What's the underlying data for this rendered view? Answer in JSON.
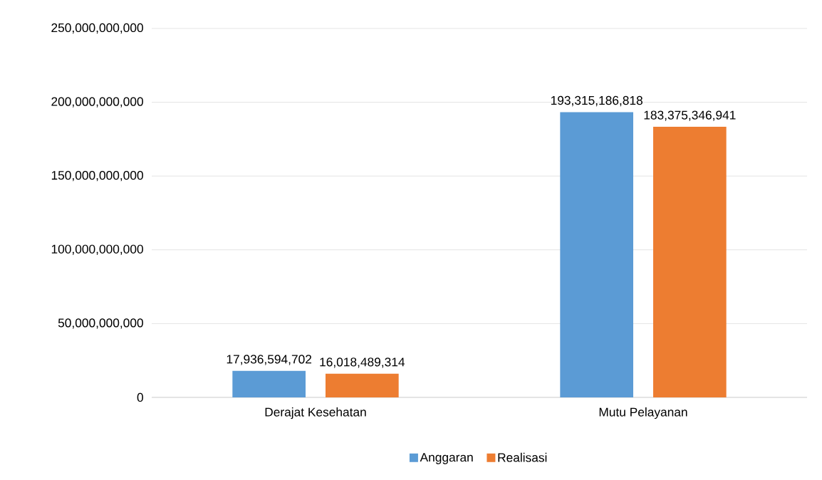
{
  "chart_data": {
    "type": "bar",
    "categories": [
      "Derajat Kesehatan",
      "Mutu Pelayanan"
    ],
    "series": [
      {
        "name": "Anggaran",
        "color": "#5b9bd5",
        "values": [
          17936594702,
          193315186818
        ],
        "value_labels": [
          "17,936,594,702",
          "193,315,186,818"
        ]
      },
      {
        "name": "Realisasi",
        "color": "#ed7d31",
        "values": [
          16018489314,
          183375346941
        ],
        "value_labels": [
          "16,018,489,314",
          "183,375,346,941"
        ]
      }
    ],
    "ylim": [
      0,
      250000000000
    ],
    "yticks": [
      0,
      {
        "value": 50000000000,
        "label": "50,000,000,000"
      },
      {
        "value": 100000000000,
        "label": "100,000,000,000"
      },
      {
        "value": 150000000000,
        "label": "150,000,000,000"
      },
      {
        "value": 200000000000,
        "label": "200,000,000,000"
      },
      {
        "value": 250000000000,
        "label": "250,000,000,000"
      }
    ],
    "grid": "y",
    "legend": "bottom"
  }
}
